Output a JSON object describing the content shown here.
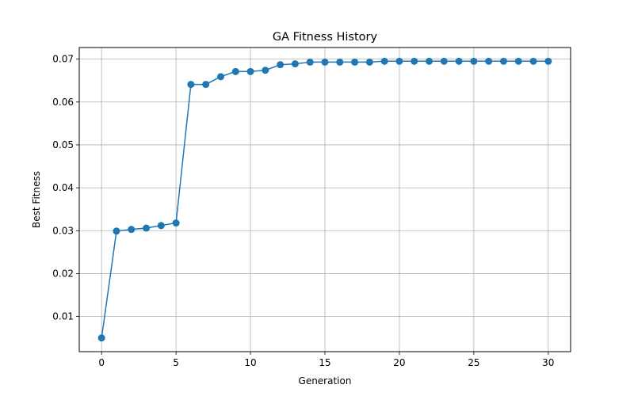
{
  "chart_data": {
    "type": "line",
    "title": "GA Fitness History",
    "xlabel": "Generation",
    "ylabel": "Best Fitness",
    "xlim": [
      -1.5,
      31.5
    ],
    "ylim": [
      0.0018,
      0.0727
    ],
    "xticks": [
      0,
      5,
      10,
      15,
      20,
      25,
      30
    ],
    "yticks": [
      0.01,
      0.02,
      0.03,
      0.04,
      0.05,
      0.06,
      0.07
    ],
    "ytick_labels": [
      "0.01",
      "0.02",
      "0.03",
      "0.04",
      "0.05",
      "0.06",
      "0.07"
    ],
    "grid": true,
    "marker": "circle",
    "color": "#1f77b4",
    "series": [
      {
        "x": [
          0,
          1,
          2,
          3,
          4,
          5,
          6,
          7,
          8,
          9,
          10,
          11,
          12,
          13,
          14,
          15,
          16,
          17,
          18,
          19,
          20,
          21,
          22,
          23,
          24,
          25,
          26,
          27,
          28,
          29,
          30
        ],
        "values": [
          0.005,
          0.0299,
          0.0303,
          0.0306,
          0.0312,
          0.0318,
          0.0641,
          0.0641,
          0.0659,
          0.0671,
          0.0671,
          0.0674,
          0.0687,
          0.0689,
          0.0693,
          0.0693,
          0.0693,
          0.0693,
          0.0693,
          0.0695,
          0.0695,
          0.0695,
          0.0695,
          0.0695,
          0.0695,
          0.0695,
          0.0695,
          0.0695,
          0.0695,
          0.0695,
          0.0695
        ]
      }
    ]
  }
}
